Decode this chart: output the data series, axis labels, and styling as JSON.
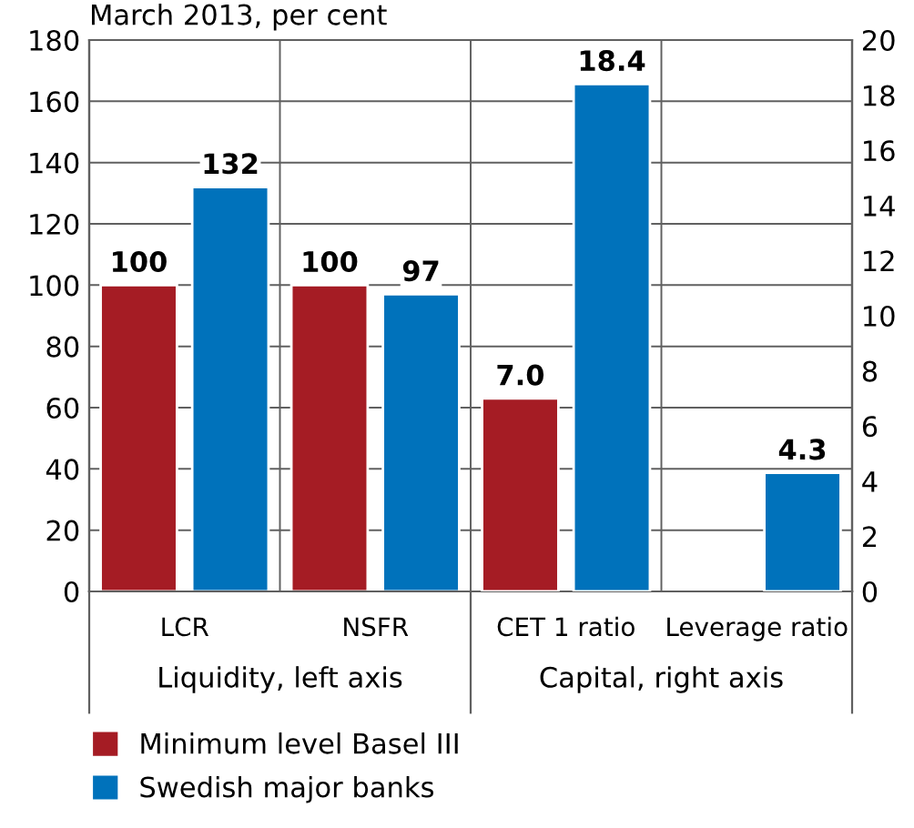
{
  "chart_data": {
    "type": "bar",
    "subtitle": "March 2013, per cent",
    "categories": [
      "LCR",
      "NSFR",
      "CET 1 ratio",
      "Leverage ratio"
    ],
    "series": [
      {
        "name": "Minimum level Basel III",
        "color": "#a51c24",
        "values": [
          100,
          100,
          null,
          null
        ],
        "value_labels": [
          "100",
          "100",
          null,
          null
        ]
      },
      {
        "name": "Swedish major banks",
        "color": "#0072bb",
        "values": [
          132,
          97,
          null,
          null
        ],
        "value_labels": [
          "132",
          "97",
          null,
          null
        ]
      },
      {
        "color": "#a51c24",
        "axis": "y2",
        "values": [
          null,
          null,
          7.0,
          null
        ],
        "value_labels": [
          null,
          null,
          "7.0",
          null
        ]
      },
      {
        "color": "#0072bb",
        "axis": "y2",
        "values": [
          null,
          null,
          18.4,
          4.3
        ],
        "value_labels": [
          null,
          null,
          "18.4",
          "4.3"
        ]
      }
    ],
    "ylim": [
      0,
      180
    ],
    "yticks": [
      0,
      20,
      40,
      60,
      80,
      100,
      120,
      140,
      160,
      180
    ],
    "y2lim": [
      0,
      20
    ],
    "y2ticks": [
      0,
      2,
      4,
      6,
      8,
      10,
      12,
      14,
      16,
      18,
      20
    ],
    "annotations": [
      {
        "text": "Liquidity, left axis"
      },
      {
        "text": "Capital, right axis"
      }
    ],
    "grid": true,
    "legend": "bottom"
  }
}
